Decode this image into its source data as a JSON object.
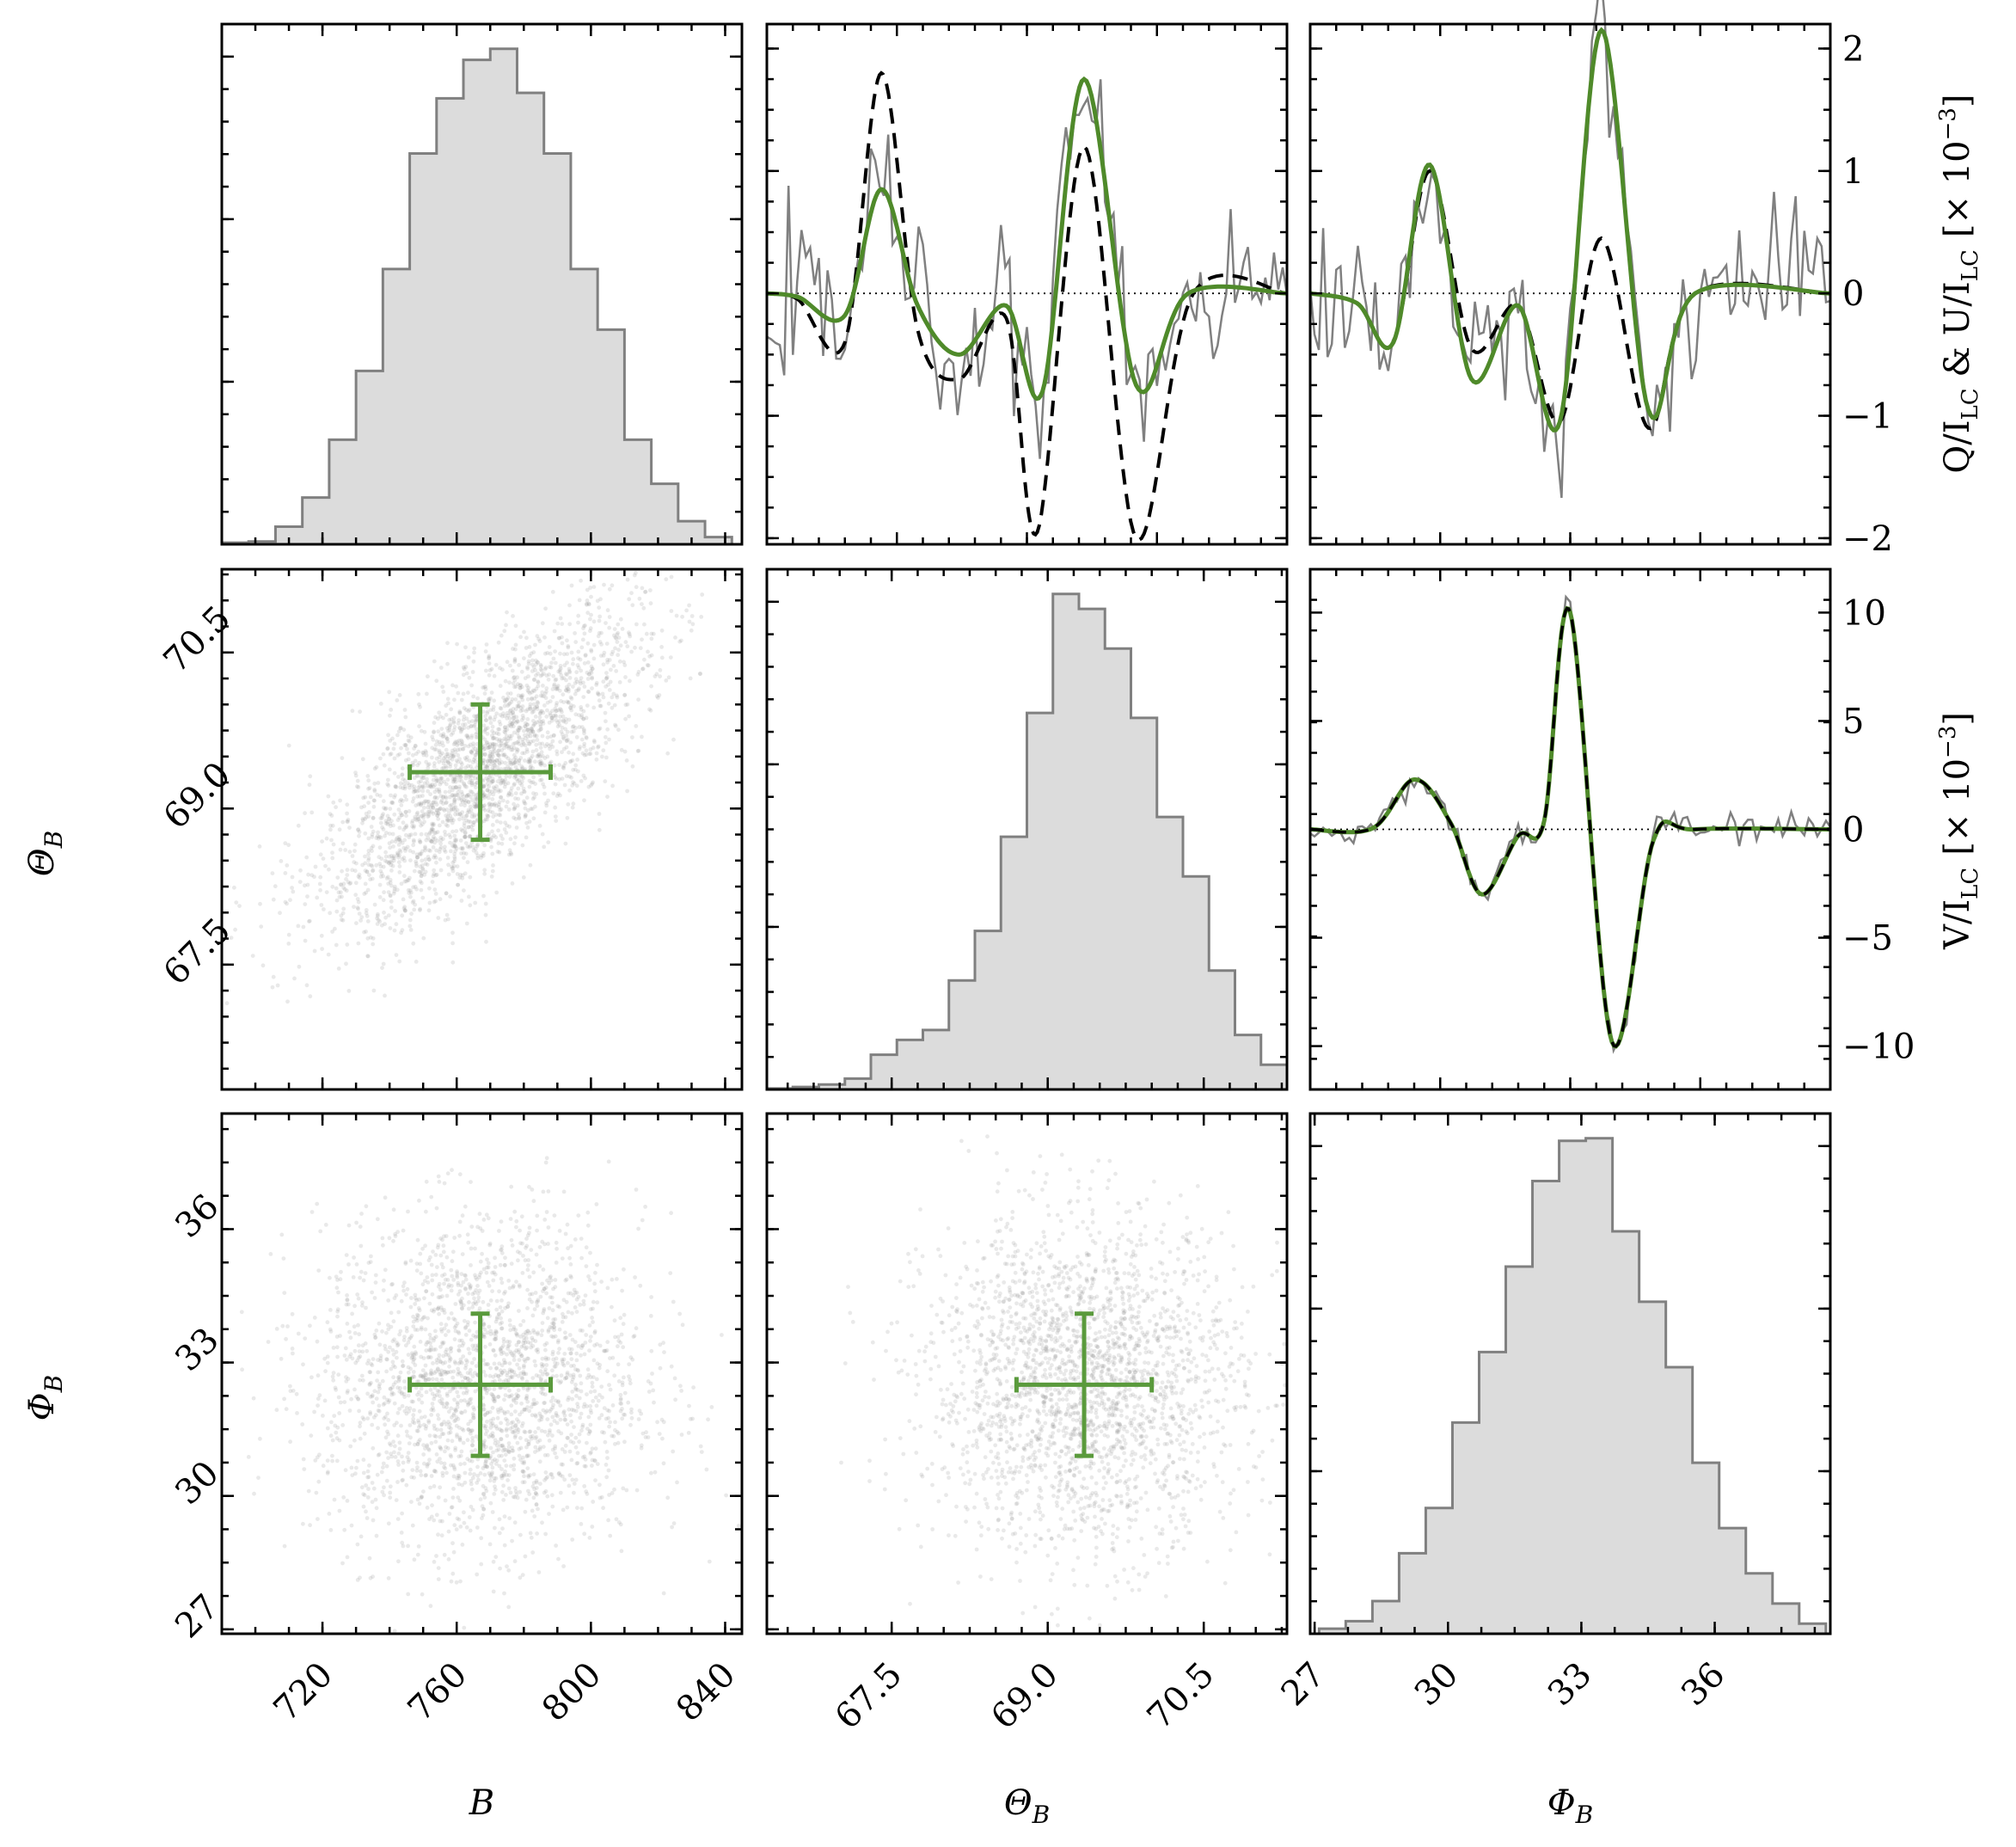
{
  "chart_data": {
    "type": "corner",
    "colors": {
      "histogram_fill": "#dcdcdc",
      "histogram_edge": "#808080",
      "scatter": "#9a9a9a",
      "estimate": "#5a9a3c",
      "observed": "#808080",
      "dashed_model": "#000000",
      "fit_model": "#4f8a2a"
    },
    "parameters": [
      {
        "key": "B",
        "label": "B",
        "range": [
          690,
          845
        ],
        "ticks": [
          "720",
          "760",
          "800",
          "840"
        ],
        "tick_values": [
          720,
          760,
          800,
          840
        ]
      },
      {
        "key": "ThetaB",
        "label": "Θ",
        "sub": "B",
        "range": [
          66.3,
          71.3
        ],
        "ticks": [
          "67.5",
          "69.0",
          "70.5"
        ],
        "tick_values": [
          67.5,
          69.0,
          70.5
        ]
      },
      {
        "key": "PhiB",
        "label": "Φ",
        "sub": "B",
        "range": [
          26.9,
          38.6
        ],
        "ticks": [
          "27",
          "30",
          "33",
          "36"
        ],
        "tick_values": [
          27,
          30,
          33,
          36
        ]
      }
    ],
    "estimates": {
      "B": {
        "value": 767,
        "err_low": 21,
        "err_high": 21
      },
      "ThetaB": {
        "value": 69.35,
        "err_low": 0.65,
        "err_high": 0.65
      },
      "PhiB": {
        "value": 32.5,
        "err_low": 1.6,
        "err_high": 1.6
      }
    },
    "histograms": {
      "B": {
        "edges": [
          690,
          698,
          706,
          714,
          722,
          730,
          738,
          746,
          754,
          762,
          770,
          778,
          786,
          794,
          802,
          810,
          818,
          826,
          834,
          842
        ],
        "counts": [
          0.3,
          0.5,
          3.2,
          8.5,
          19,
          31.5,
          50,
          71,
          81,
          88,
          90,
          82,
          71,
          50,
          39,
          19,
          11,
          4.2,
          1.3
        ]
      },
      "ThetaB": {
        "edges": [
          66.3,
          66.55,
          66.8,
          67.05,
          67.3,
          67.55,
          67.8,
          68.05,
          68.3,
          68.55,
          68.8,
          69.05,
          69.3,
          69.55,
          69.8,
          70.05,
          70.3,
          70.55,
          70.8,
          71.05,
          71.3
        ],
        "counts": [
          0.2,
          0.5,
          1,
          2.2,
          7,
          10,
          12,
          22,
          32,
          51,
          76,
          100,
          97,
          89,
          75,
          55,
          43,
          24,
          11,
          5
        ]
      },
      "PhiB": {
        "edges": [
          27.1,
          27.7,
          28.3,
          28.9,
          29.5,
          30.1,
          30.7,
          31.3,
          31.9,
          32.5,
          33.1,
          33.7,
          34.3,
          34.9,
          35.5,
          36.1,
          36.7,
          37.3,
          37.9,
          38.5
        ],
        "counts": [
          1,
          2.5,
          6.5,
          16,
          25,
          42,
          56,
          73,
          90,
          98,
          98.5,
          80,
          66,
          53,
          34,
          21,
          12,
          6,
          2
        ]
      }
    },
    "scatter_pairs": [
      {
        "x": "B",
        "y": "ThetaB",
        "correlation": 0.75,
        "n_points": 2600
      },
      {
        "x": "B",
        "y": "PhiB",
        "correlation": 0.0,
        "n_points": 2400
      },
      {
        "x": "ThetaB",
        "y": "PhiB",
        "correlation": 0.0,
        "n_points": 2400
      }
    ],
    "profiles": {
      "QU": {
        "ylabel_main": "Q/I",
        "ylabel_mid": " & U/I",
        "ylabel_sub": "LC",
        "ylabel_unit": "[× 10",
        "ylabel_exp": "−3",
        "ylabel_close": "]",
        "yrange": [
          -2.05,
          2.2
        ],
        "yticks": [
          "−2",
          "−1",
          "0",
          "1",
          "2"
        ],
        "ytick_values": [
          -2,
          -1,
          0,
          1,
          2
        ],
        "panels": [
          {
            "name": "Q",
            "fit": [
              [
                -2.5,
                0.0
              ],
              [
                -2.2,
                -0.03
              ],
              [
                -1.75,
                -0.18
              ],
              [
                -1.4,
                0.85
              ],
              [
                -1.05,
                -0.1
              ],
              [
                -0.65,
                -0.5
              ],
              [
                -0.2,
                -0.1
              ],
              [
                0.15,
                -0.8
              ],
              [
                0.55,
                1.75
              ],
              [
                1.05,
                -0.75
              ],
              [
                1.55,
                0.0
              ],
              [
                2.5,
                0.0
              ]
            ],
            "dashed": [
              [
                -2.5,
                0.0
              ],
              [
                -2.2,
                -0.05
              ],
              [
                -1.75,
                -0.4
              ],
              [
                -1.4,
                1.8
              ],
              [
                -1.05,
                -0.3
              ],
              [
                -0.65,
                -0.7
              ],
              [
                -0.2,
                -0.2
              ],
              [
                0.1,
                -1.95
              ],
              [
                0.55,
                1.2
              ],
              [
                1.05,
                -2.0
              ],
              [
                1.6,
                0.0
              ],
              [
                2.5,
                0.0
              ]
            ]
          },
          {
            "name": "U",
            "fit": [
              [
                -2.5,
                0.0
              ],
              [
                -2.05,
                -0.08
              ],
              [
                -1.7,
                -0.4
              ],
              [
                -1.35,
                1.05
              ],
              [
                -0.95,
                -0.7
              ],
              [
                -0.5,
                -0.1
              ],
              [
                -0.1,
                -1.05
              ],
              [
                0.3,
                2.15
              ],
              [
                0.75,
                -0.95
              ],
              [
                1.2,
                0.0
              ],
              [
                2.5,
                0.0
              ]
            ],
            "dashed": [
              [
                -2.5,
                0.0
              ],
              [
                -2.05,
                -0.08
              ],
              [
                -1.7,
                -0.4
              ],
              [
                -1.35,
                1.0
              ],
              [
                -0.95,
                -0.45
              ],
              [
                -0.5,
                -0.1
              ],
              [
                -0.1,
                -1.05
              ],
              [
                0.3,
                0.45
              ],
              [
                0.75,
                -1.1
              ],
              [
                1.2,
                0.0
              ],
              [
                2.5,
                0.0
              ]
            ]
          }
        ]
      },
      "V": {
        "ylabel_main": "V/I",
        "ylabel_sub": "LC",
        "ylabel_unit": "[× 10",
        "ylabel_exp": "−3",
        "ylabel_close": "]",
        "yrange": [
          -12,
          12
        ],
        "yticks": [
          "−10",
          "−5",
          "0",
          "5",
          "10"
        ],
        "ytick_values": [
          -10,
          -5,
          0,
          5,
          10
        ],
        "fit": [
          [
            -2.5,
            0.0
          ],
          [
            -1.9,
            0.05
          ],
          [
            -1.5,
            2.3
          ],
          [
            -1.15,
            0.3
          ],
          [
            -0.85,
            -3.0
          ],
          [
            -0.5,
            -0.3
          ],
          [
            -0.25,
            0.4
          ],
          [
            0.0,
            10.0
          ],
          [
            0.4,
            -9.8
          ],
          [
            0.8,
            -0.5
          ],
          [
            1.2,
            0.0
          ],
          [
            2.5,
            0.0
          ]
        ]
      }
    }
  }
}
